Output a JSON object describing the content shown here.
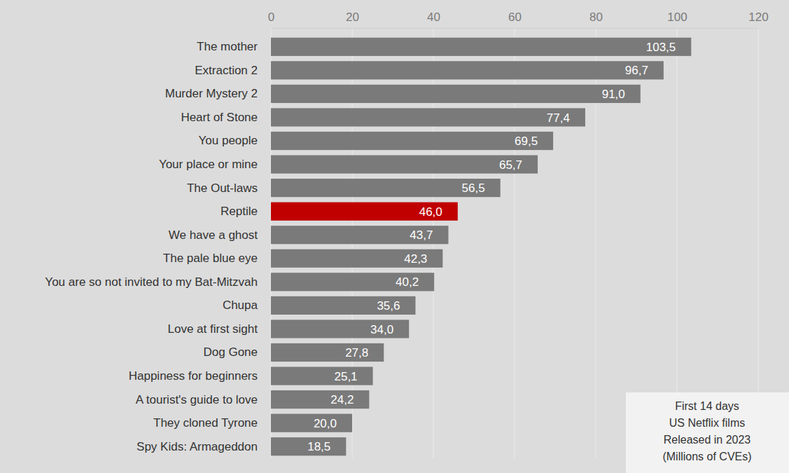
{
  "chart_data": {
    "type": "bar",
    "orientation": "horizontal",
    "categories": [
      "The mother",
      "Extraction 2",
      "Murder Mystery 2",
      "Heart of Stone",
      "You people",
      "Your place or mine",
      "The Out-laws",
      "Reptile",
      "We have a ghost",
      "The pale blue eye",
      "You are so not invited to my Bat-Mitzvah",
      "Chupa",
      "Love at first sight",
      "Dog Gone",
      "Happiness for beginners",
      "A tourist's guide to love",
      "They cloned Tyrone",
      "Spy Kids: Armageddon"
    ],
    "values": [
      103.5,
      96.7,
      91.0,
      77.4,
      69.5,
      65.7,
      56.5,
      46.0,
      43.7,
      42.3,
      40.2,
      35.6,
      34.0,
      27.8,
      25.1,
      24.2,
      20.0,
      18.5
    ],
    "value_labels": [
      "103,5",
      "96,7",
      "91,0",
      "77,4",
      "69,5",
      "65,7",
      "56,5",
      "46,0",
      "43,7",
      "42,3",
      "40,2",
      "35,6",
      "34,0",
      "27,8",
      "25,1",
      "24,2",
      "20,0",
      "18,5"
    ],
    "colors": [
      "#7a7a7a",
      "#7a7a7a",
      "#7a7a7a",
      "#7a7a7a",
      "#7a7a7a",
      "#7a7a7a",
      "#7a7a7a",
      "#c00000",
      "#7a7a7a",
      "#7a7a7a",
      "#7a7a7a",
      "#7a7a7a",
      "#7a7a7a",
      "#7a7a7a",
      "#7a7a7a",
      "#7a7a7a",
      "#7a7a7a",
      "#7a7a7a"
    ],
    "xlim": [
      0,
      120
    ],
    "xticks": [
      0,
      20,
      40,
      60,
      80,
      100,
      120
    ],
    "grid": true,
    "data_labels": true,
    "annotations": [
      "First 14 days",
      "US Netflix films",
      "Released in 2023",
      "(Millions of CVEs)"
    ]
  }
}
